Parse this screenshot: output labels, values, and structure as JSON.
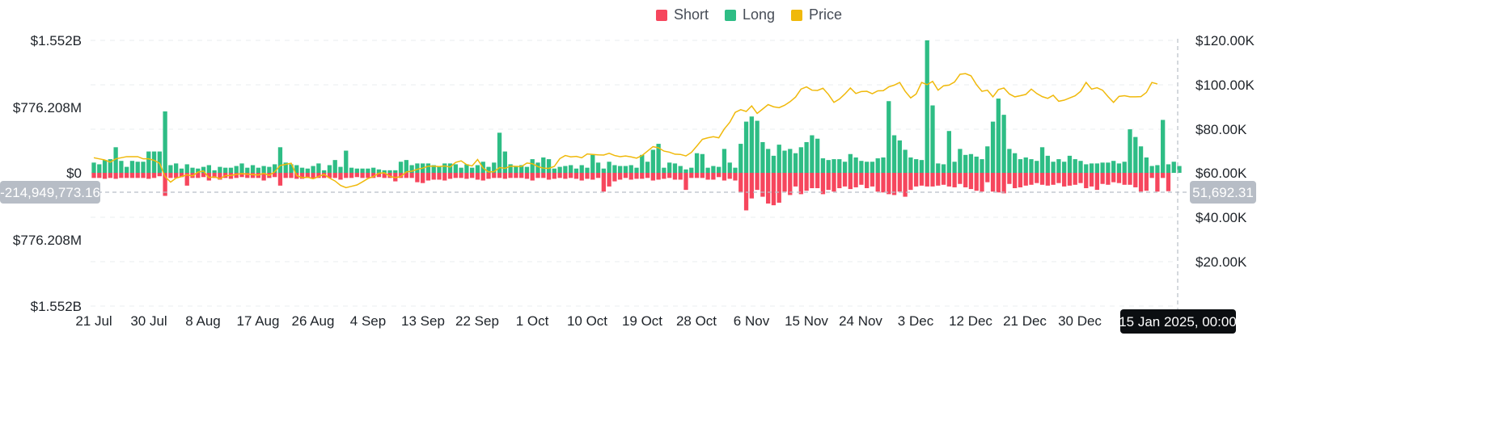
{
  "legend": [
    {
      "label": "Short",
      "color": "#f6465d"
    },
    {
      "label": "Long",
      "color": "#2ebd85"
    },
    {
      "label": "Price",
      "color": "#f0b90b"
    }
  ],
  "crosshair": {
    "left_value": "-214,949,773.16",
    "right_value": "51,692.31",
    "x_label": "15 Jan 2025, 00:00"
  },
  "chart_data": {
    "type": "bar",
    "x_tick_labels": [
      "21 Jul",
      "30 Jul",
      "8 Aug",
      "17 Aug",
      "26 Aug",
      "4 Sep",
      "13 Sep",
      "22 Sep",
      "1 Oct",
      "10 Oct",
      "19 Oct",
      "28 Oct",
      "6 Nov",
      "15 Nov",
      "24 Nov",
      "3 Dec",
      "12 Dec",
      "21 Dec",
      "30 Dec"
    ],
    "left_axis_ticks": [
      "$1.552B",
      "$776.208M",
      "$0",
      "$776.208M",
      "$1.552B"
    ],
    "left_ylim": [
      -1552000000,
      1552000000
    ],
    "right_axis_ticks": [
      "$120.00K",
      "$100.00K",
      "$80.00K",
      "$60.00K",
      "$40.00K",
      "$20.00K"
    ],
    "right_ylim": [
      0,
      120000
    ],
    "start_date": "2024-07-21",
    "series": [
      {
        "name": "Long",
        "color": "#2ebd85",
        "values": [
          120,
          100,
          150,
          160,
          300,
          140,
          70,
          140,
          130,
          130,
          250,
          250,
          250,
          720,
          90,
          110,
          50,
          100,
          60,
          50,
          70,
          90,
          30,
          70,
          60,
          60,
          80,
          110,
          60,
          90,
          60,
          80,
          70,
          100,
          300,
          120,
          100,
          90,
          60,
          50,
          80,
          110,
          30,
          90,
          150,
          70,
          260,
          60,
          50,
          50,
          50,
          60,
          40,
          30,
          30,
          30,
          130,
          150,
          90,
          110,
          110,
          110,
          90,
          80,
          110,
          110,
          100,
          60,
          100,
          60,
          90,
          130,
          70,
          120,
          470,
          250,
          100,
          80,
          90,
          70,
          160,
          120,
          180,
          160,
          50,
          70,
          80,
          90,
          50,
          90,
          60,
          210,
          120,
          50,
          130,
          90,
          80,
          80,
          90,
          60,
          210,
          130,
          270,
          340,
          60,
          120,
          110,
          80,
          40,
          60,
          230,
          220,
          60,
          80,
          70,
          280,
          120,
          60,
          340,
          600,
          660,
          610,
          360,
          280,
          200,
          330,
          260,
          280,
          230,
          300,
          360,
          440,
          400,
          170,
          150,
          160,
          160,
          130,
          220,
          180,
          140,
          130,
          130,
          170,
          180,
          840,
          440,
          380,
          270,
          180,
          160,
          150,
          1552,
          790,
          110,
          100,
          490,
          130,
          280,
          210,
          220,
          190,
          160,
          310,
          600,
          870,
          680,
          280,
          230,
          160,
          180,
          160,
          140,
          300,
          200,
          130,
          160,
          130,
          200,
          160,
          140,
          100,
          110,
          110,
          120,
          120,
          140,
          110,
          130,
          510,
          420,
          310,
          180,
          80,
          90,
          620,
          100,
          130,
          80
        ]
      },
      {
        "name": "Short",
        "color": "#f6465d",
        "values": [
          60,
          60,
          70,
          60,
          70,
          60,
          60,
          60,
          60,
          60,
          70,
          60,
          40,
          270,
          60,
          60,
          50,
          150,
          60,
          60,
          50,
          90,
          60,
          80,
          60,
          70,
          60,
          50,
          60,
          60,
          60,
          90,
          60,
          50,
          150,
          60,
          60,
          70,
          70,
          60,
          70,
          60,
          60,
          60,
          60,
          80,
          60,
          60,
          50,
          60,
          60,
          60,
          50,
          60,
          60,
          100,
          60,
          60,
          60,
          110,
          120,
          90,
          80,
          80,
          90,
          70,
          60,
          60,
          70,
          60,
          80,
          90,
          70,
          60,
          60,
          70,
          60,
          60,
          60,
          70,
          90,
          60,
          60,
          80,
          70,
          60,
          70,
          60,
          70,
          90,
          70,
          80,
          60,
          220,
          160,
          100,
          80,
          60,
          80,
          70,
          70,
          60,
          90,
          80,
          70,
          60,
          80,
          80,
          200,
          60,
          60,
          60,
          80,
          80,
          50,
          90,
          70,
          90,
          230,
          440,
          300,
          200,
          280,
          360,
          380,
          350,
          220,
          260,
          160,
          250,
          210,
          180,
          180,
          250,
          200,
          220,
          180,
          160,
          190,
          170,
          140,
          180,
          160,
          220,
          230,
          250,
          260,
          220,
          280,
          200,
          160,
          150,
          160,
          160,
          150,
          140,
          160,
          170,
          130,
          170,
          190,
          210,
          220,
          110,
          220,
          230,
          240,
          130,
          180,
          170,
          150,
          140,
          120,
          140,
          150,
          140,
          120,
          160,
          150,
          140,
          120,
          180,
          160,
          200,
          130,
          140,
          110,
          120,
          140,
          140,
          170,
          220,
          210,
          60,
          220,
          60,
          215
        ]
      },
      {
        "name": "Price",
        "color": "#f0b90b",
        "values": [
          67000,
          66500,
          66000,
          65000,
          66500,
          67000,
          67500,
          67500,
          67500,
          66500,
          66500,
          65800,
          64500,
          58500,
          56000,
          57800,
          58500,
          59300,
          58800,
          60500,
          61000,
          58000,
          58400,
          57500,
          58900,
          59000,
          59500,
          59800,
          59600,
          59400,
          59200,
          60000,
          59000,
          60700,
          63500,
          64000,
          64500,
          59000,
          58000,
          58200,
          57500,
          58500,
          59500,
          57800,
          56500,
          54500,
          53500,
          54100,
          54700,
          56100,
          57600,
          58500,
          60000,
          60200,
          58600,
          58000,
          58500,
          60600,
          60900,
          61800,
          62300,
          63200,
          63200,
          63000,
          63300,
          62800,
          64900,
          65600,
          63900,
          63300,
          66200,
          62400,
          60600,
          60700,
          62600,
          62200,
          63200,
          63100,
          63000,
          64600,
          64300,
          63000,
          62300,
          62200,
          63100,
          66600,
          68000,
          67400,
          67600,
          67000,
          68700,
          68500,
          68300,
          68200,
          69000,
          68000,
          67500,
          67800,
          67400,
          66800,
          68000,
          70000,
          72000,
          71500,
          70000,
          69500,
          68600,
          68500,
          67800,
          69400,
          72300,
          75300,
          76000,
          76500,
          76000,
          80000,
          83000,
          87500,
          88700,
          87900,
          90400,
          87000,
          89000,
          91000,
          90000,
          89600,
          90700,
          92300,
          94400,
          98000,
          99000,
          97500,
          97400,
          98400,
          95600,
          92000,
          93500,
          95800,
          98500,
          96000,
          96900,
          97000,
          95900,
          97200,
          97300,
          99000,
          99800,
          101000,
          97000,
          94000,
          95800,
          101000,
          100000,
          101500,
          97500,
          99500,
          99800,
          101200,
          104700,
          105000,
          104000,
          100000,
          97000,
          97500,
          94500,
          97800,
          98500,
          95800,
          94500,
          95000,
          95600,
          98000,
          96000,
          94600,
          93800,
          95200,
          92500,
          93000,
          94000,
          95000,
          97000,
          101000,
          98000,
          98600,
          97500,
          94600,
          92000,
          94700,
          95000,
          94500,
          94500,
          94600,
          96500,
          101000,
          100300
        ]
      }
    ],
    "grid": true,
    "legend_position": "top-center"
  }
}
